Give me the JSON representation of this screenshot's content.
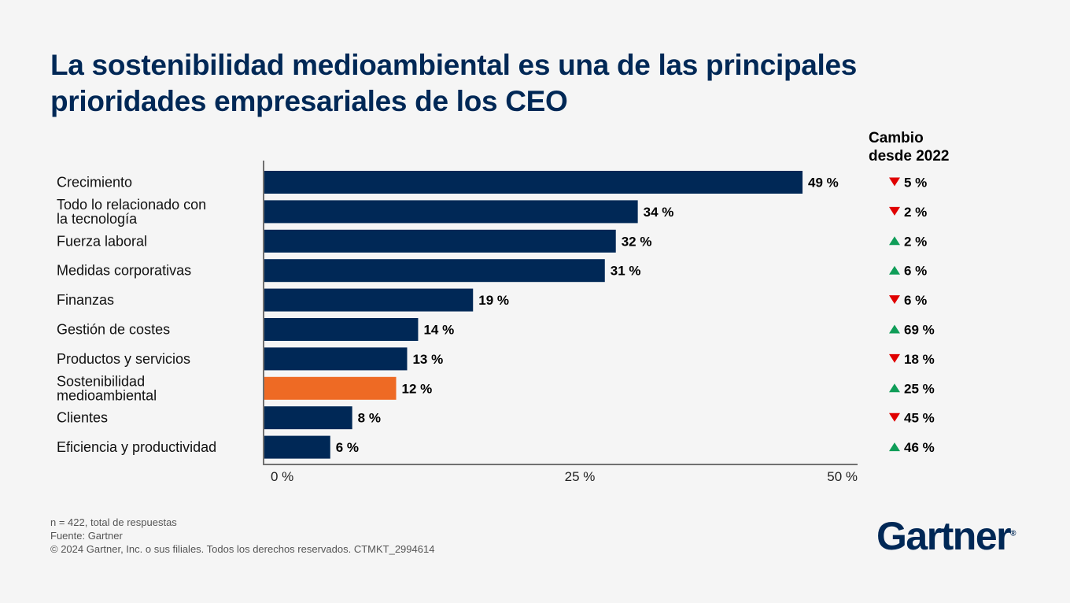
{
  "title": "La sostenibilidad medioambiental es una de las principales prioridades empresariales de los CEO",
  "colors": {
    "bar": "#002856",
    "highlight": "#ee6a24",
    "up": "#0f9d58",
    "down": "#e00000",
    "axis": "#707070"
  },
  "chart_data": {
    "type": "bar",
    "orientation": "horizontal",
    "title": "La sostenibilidad medioambiental es una de las principales prioridades empresariales de los CEO",
    "categories": [
      [
        "Crecimiento"
      ],
      [
        "Todo lo relacionado con",
        "la tecnología"
      ],
      [
        "Fuerza laboral"
      ],
      [
        "Medidas corporativas"
      ],
      [
        "Finanzas"
      ],
      [
        "Gestión de costes"
      ],
      [
        "Productos y servicios"
      ],
      [
        "Sostenibilidad",
        "medioambiental"
      ],
      [
        "Clientes"
      ],
      [
        "Eficiencia y productividad"
      ]
    ],
    "values": [
      49,
      34,
      32,
      31,
      19,
      14,
      13,
      12,
      8,
      6
    ],
    "value_labels": [
      "49 %",
      "34 %",
      "32 %",
      "31 %",
      "19 %",
      "14 %",
      "13 %",
      "12 %",
      "8 %",
      "6 %"
    ],
    "highlight_index": 7,
    "xlim": [
      0,
      50
    ],
    "xticks": [
      "0 %",
      "25 %",
      "50 %"
    ],
    "grid": false,
    "change_header": [
      "Cambio",
      "desde 2022"
    ],
    "change": [
      {
        "dir": "down",
        "label": "5 %"
      },
      {
        "dir": "down",
        "label": "2 %"
      },
      {
        "dir": "up",
        "label": "2 %"
      },
      {
        "dir": "up",
        "label": "6 %"
      },
      {
        "dir": "down",
        "label": "6 %"
      },
      {
        "dir": "up",
        "label": "69 %"
      },
      {
        "dir": "down",
        "label": "18 %"
      },
      {
        "dir": "up",
        "label": "25 %"
      },
      {
        "dir": "down",
        "label": "45 %"
      },
      {
        "dir": "up",
        "label": "46 %"
      }
    ]
  },
  "footer": {
    "n": "n = 422, total de respuestas",
    "source": "Fuente: Gartner",
    "copyright": "© 2024 Gartner, Inc. o sus filiales. Todos los derechos reservados. CTMKT_2994614"
  },
  "logo": "Gartner"
}
